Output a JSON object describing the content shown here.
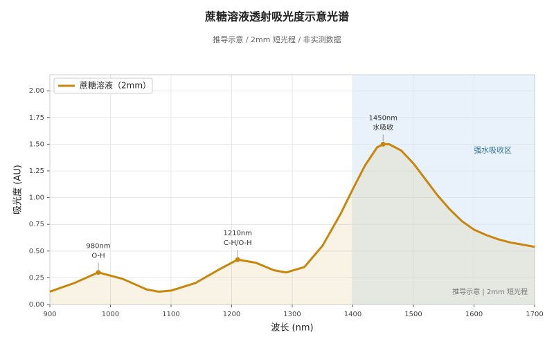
{
  "chart_data": {
    "type": "line",
    "title": "蔗糖溶液透射吸光度示意光谱",
    "subtitle": "推导示意 / 2mm 短光程 / 非实测数据",
    "x_label": "波长 (nm)",
    "y_label": "吸光度 (AU)",
    "x": [
      900,
      940,
      980,
      1020,
      1060,
      1080,
      1100,
      1140,
      1180,
      1210,
      1240,
      1270,
      1290,
      1320,
      1350,
      1380,
      1400,
      1420,
      1440,
      1450,
      1460,
      1480,
      1500,
      1520,
      1540,
      1560,
      1580,
      1600,
      1620,
      1640,
      1660,
      1680,
      1700
    ],
    "series": [
      {
        "name": "蔗糖溶液（2mm）",
        "color": "#c8860a",
        "values": [
          0.12,
          0.2,
          0.3,
          0.24,
          0.14,
          0.12,
          0.13,
          0.2,
          0.33,
          0.42,
          0.39,
          0.32,
          0.3,
          0.35,
          0.55,
          0.85,
          1.08,
          1.3,
          1.47,
          1.5,
          1.5,
          1.44,
          1.32,
          1.17,
          1.02,
          0.89,
          0.78,
          0.7,
          0.65,
          0.61,
          0.58,
          0.56,
          0.54
        ]
      }
    ],
    "xlim": [
      900,
      1700
    ],
    "ylim": [
      0,
      2.15
    ],
    "xticks": [
      900,
      1000,
      1100,
      1200,
      1300,
      1400,
      1500,
      1600,
      1700
    ],
    "yticks": [
      {
        "value": 0,
        "label": "0.00"
      },
      {
        "value": 0.25,
        "label": "0.25"
      },
      {
        "value": 0.5,
        "label": "0.50"
      },
      {
        "value": 0.75,
        "label": "0.75"
      },
      {
        "value": 1,
        "label": "1.00"
      },
      {
        "value": 1.25,
        "label": "1.25"
      },
      {
        "value": 1.5,
        "label": "1.50"
      },
      {
        "value": 1.75,
        "label": "1.75"
      },
      {
        "value": 2,
        "label": "2.00"
      }
    ],
    "grid": true,
    "legend": "upper left",
    "annotations": [
      {
        "x": 980,
        "y": 0.3,
        "lines": [
          "980nm",
          "O-H"
        ]
      },
      {
        "x": 1210,
        "y": 0.42,
        "lines": [
          "1210nm",
          "C-H/O-H"
        ]
      },
      {
        "x": 1450,
        "y": 1.5,
        "lines": [
          "1450nm",
          "水吸收"
        ]
      }
    ],
    "shaded_region": {
      "x": [
        1400,
        1700
      ],
      "label": "强水吸收区",
      "color": "#dbeaf7"
    },
    "note": "推导示意 | 2mm 短光程"
  }
}
